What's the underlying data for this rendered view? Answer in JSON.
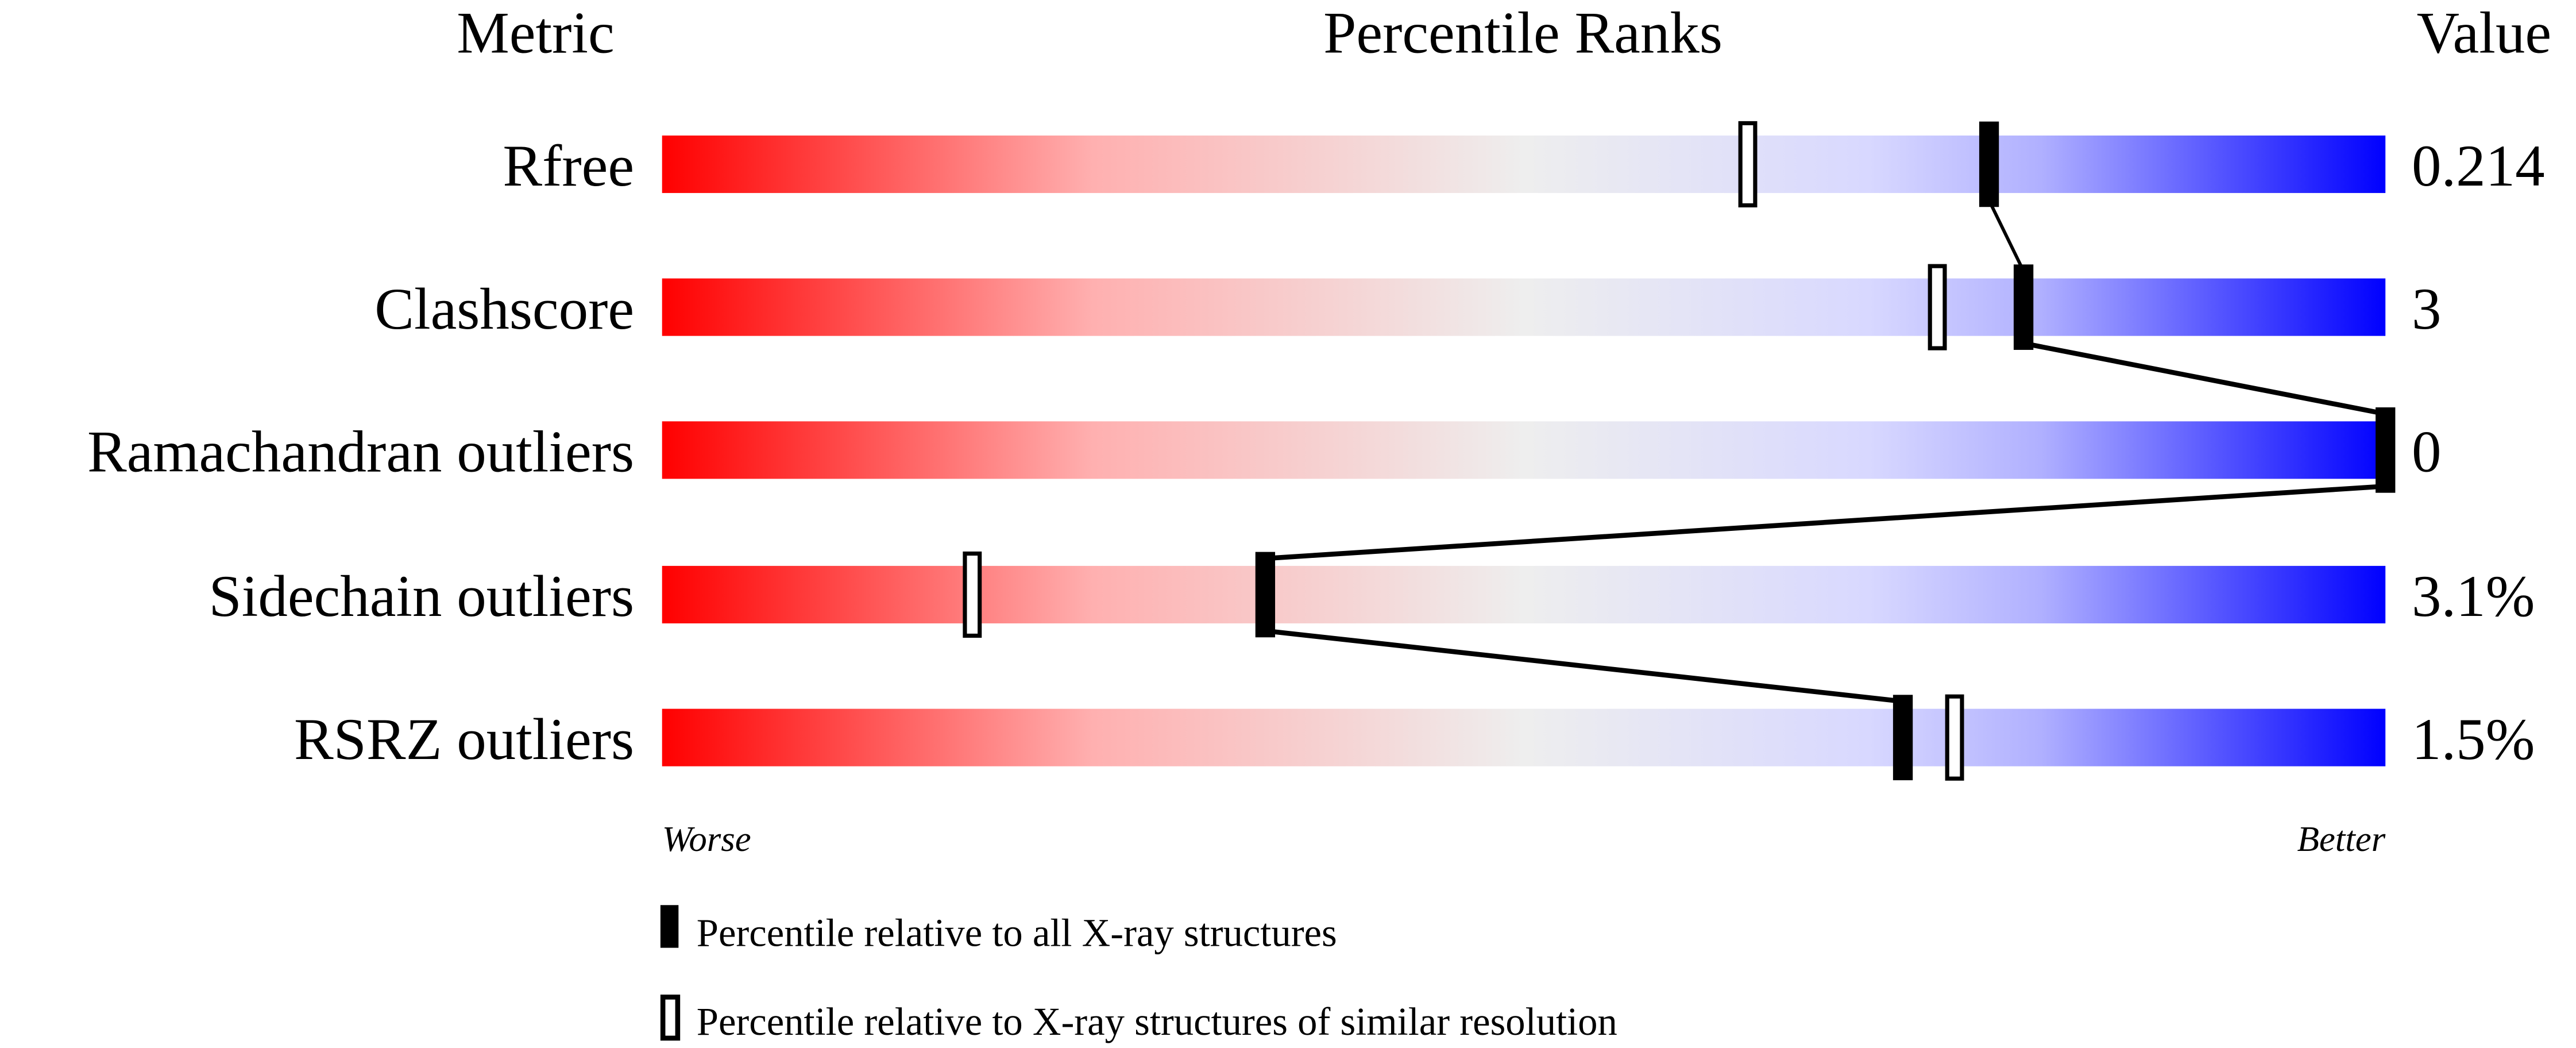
{
  "chart_data": {
    "type": "bar",
    "headers": {
      "metric": "Metric",
      "ranks": "Percentile Ranks",
      "value": "Value"
    },
    "xlim": [
      0,
      100
    ],
    "metrics": [
      {
        "name": "Rfree",
        "value": "0.214",
        "percentile_all": 77,
        "percentile_similar": 63
      },
      {
        "name": "Clashscore",
        "value": "3",
        "percentile_all": 79,
        "percentile_similar": 74
      },
      {
        "name": "Ramachandran outliers",
        "value": "0",
        "percentile_all": 100,
        "percentile_similar": null
      },
      {
        "name": "Sidechain outliers",
        "value": "3.1%",
        "percentile_all": 35,
        "percentile_similar": 18
      },
      {
        "name": "RSRZ outliers",
        "value": "1.5%",
        "percentile_all": 72,
        "percentile_similar": 75
      }
    ],
    "axis": {
      "left": "Worse",
      "right": "Better"
    },
    "legend": [
      {
        "marker": "filled",
        "label": "Percentile relative to all X-ray structures"
      },
      {
        "marker": "open",
        "label": "Percentile relative to X-ray structures of similar resolution"
      }
    ],
    "colors": {
      "worse": "#ff0000",
      "middle": "#eeeeee",
      "light_blue": "#d8d8ff",
      "better": "#0000ff"
    }
  }
}
